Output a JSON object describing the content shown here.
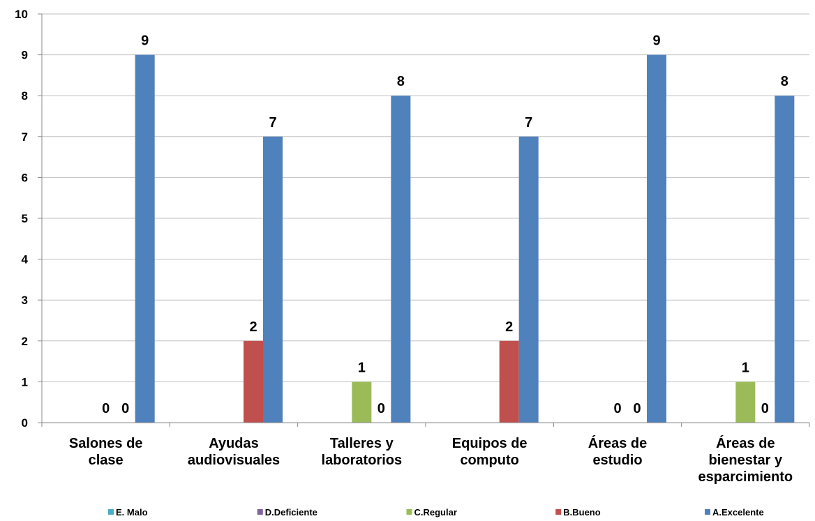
{
  "chart_data": {
    "type": "bar",
    "categories": [
      [
        "Salones de",
        "clase"
      ],
      [
        "Ayudas",
        "audiovisuales"
      ],
      [
        "Talleres y",
        "laboratorios"
      ],
      [
        "Equipos de",
        "computo"
      ],
      [
        "Áreas de",
        "estudio"
      ],
      [
        "Áreas de",
        "bienestar y",
        "esparcimiento"
      ]
    ],
    "series": [
      {
        "name": "E. Malo",
        "color": "#4bacc6",
        "values": [
          null,
          null,
          null,
          null,
          null,
          null
        ]
      },
      {
        "name": "D.Deficiente",
        "color": "#8064a2",
        "values": [
          null,
          null,
          null,
          null,
          null,
          null
        ]
      },
      {
        "name": "C.Regular",
        "color": "#9bbb59",
        "values": [
          0,
          null,
          1,
          null,
          0,
          1
        ]
      },
      {
        "name": "B.Bueno",
        "color": "#c0504d",
        "values": [
          0,
          2,
          0,
          2,
          0,
          0
        ]
      },
      {
        "name": "A.Excelente",
        "color": "#4f81bd",
        "values": [
          9,
          7,
          8,
          7,
          9,
          8
        ]
      }
    ],
    "ylim": [
      0,
      10
    ],
    "yticks": [
      0,
      1,
      2,
      3,
      4,
      5,
      6,
      7,
      8,
      9,
      10
    ],
    "grid": true,
    "legend_position": "bottom"
  }
}
